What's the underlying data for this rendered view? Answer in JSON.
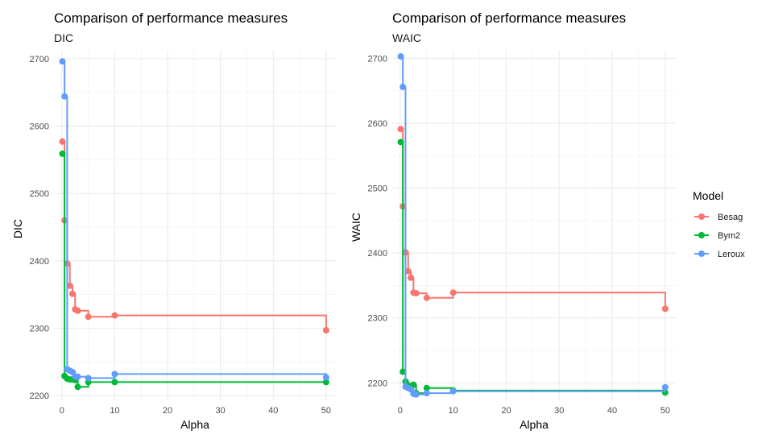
{
  "figure_colors": {
    "Besag": "#F8766D",
    "Bym2": "#00BA38",
    "Leroux": "#619CFF"
  },
  "legend": {
    "title": "Model",
    "items": [
      "Besag",
      "Bym2",
      "Leroux"
    ]
  },
  "chart_data": [
    {
      "type": "line",
      "title": "Comparison of performance measures",
      "subtitle": "DIC",
      "xlabel": "Alpha",
      "ylabel": "DIC",
      "xlim": [
        -1.5,
        52
      ],
      "ylim": [
        2193,
        2713
      ],
      "xticks": [
        0,
        10,
        20,
        30,
        40,
        50
      ],
      "yticks": [
        2200,
        2300,
        2400,
        2500,
        2600,
        2700
      ],
      "grid": true,
      "step": true,
      "series": [
        {
          "name": "Besag",
          "x": [
            0.1,
            0.5,
            1,
            1.5,
            2,
            2.5,
            3,
            5,
            10,
            50
          ],
          "y": [
            2577,
            2460,
            2396,
            2363,
            2351,
            2328,
            2326,
            2317,
            2319,
            2297
          ]
        },
        {
          "name": "Bym2",
          "x": [
            0.1,
            0.5,
            1,
            1.5,
            2,
            2.5,
            3,
            5,
            10,
            50
          ],
          "y": [
            2559,
            2229,
            2225,
            2224,
            2224,
            2223,
            2213,
            2220,
            2220,
            2220
          ]
        },
        {
          "name": "Leroux",
          "x": [
            0.1,
            0.5,
            1,
            1.5,
            2,
            2.5,
            3,
            5,
            10,
            50
          ],
          "y": [
            2696,
            2644,
            2239,
            2237,
            2235,
            2228,
            2228,
            2226,
            2232,
            2227
          ]
        }
      ]
    },
    {
      "type": "line",
      "title": "Comparison of performance measures",
      "subtitle": "WAIC",
      "xlabel": "Alpha",
      "ylabel": "WAIC",
      "xlim": [
        -1.5,
        52
      ],
      "ylim": [
        2173,
        2713
      ],
      "xticks": [
        0,
        10,
        20,
        30,
        40,
        50
      ],
      "yticks": [
        2200,
        2300,
        2400,
        2500,
        2600,
        2700
      ],
      "grid": true,
      "step": true,
      "series": [
        {
          "name": "Besag",
          "x": [
            0.1,
            0.5,
            1,
            1.5,
            2,
            2.5,
            3,
            5,
            10,
            50
          ],
          "y": [
            2591,
            2472,
            2401,
            2372,
            2362,
            2339,
            2338,
            2331,
            2339,
            2314
          ]
        },
        {
          "name": "Bym2",
          "x": [
            0.1,
            0.5,
            1,
            1.5,
            2,
            2.5,
            3,
            5,
            10,
            50
          ],
          "y": [
            2571,
            2217,
            2202,
            2196,
            2193,
            2197,
            2184,
            2192,
            2188,
            2185
          ]
        },
        {
          "name": "Leroux",
          "x": [
            0.1,
            0.5,
            1,
            1.5,
            2,
            2.5,
            3,
            5,
            10,
            50
          ],
          "y": [
            2703,
            2656,
            2194,
            2192,
            2190,
            2183,
            2182,
            2184,
            2187,
            2193
          ]
        }
      ]
    }
  ]
}
